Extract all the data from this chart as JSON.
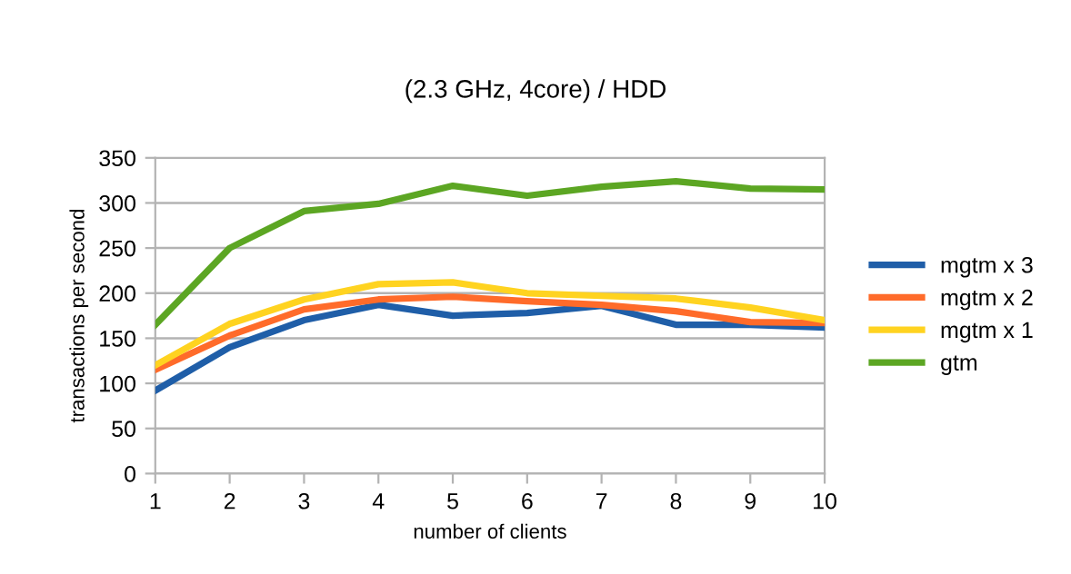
{
  "chart_data": {
    "type": "line",
    "subtitle": "(2.3 GHz, 4core) / HDD",
    "xlabel": "number of clients",
    "ylabel": "transactions per second",
    "x": [
      1,
      2,
      3,
      4,
      5,
      6,
      7,
      8,
      9,
      10
    ],
    "series": [
      {
        "name": "mgtm x 3",
        "color": "#1f5ea8",
        "values": [
          92,
          140,
          170,
          187,
          175,
          178,
          186,
          165,
          165,
          162
        ]
      },
      {
        "name": "mgtm x 2",
        "color": "#ff6b2a",
        "values": [
          115,
          153,
          182,
          193,
          196,
          191,
          187,
          180,
          168,
          167
        ]
      },
      {
        "name": "mgtm x 1",
        "color": "#ffd320",
        "values": [
          120,
          166,
          193,
          210,
          212,
          200,
          197,
          194,
          184,
          170
        ]
      },
      {
        "name": "gtm",
        "color": "#5ca623",
        "values": [
          165,
          250,
          291,
          299,
          319,
          308,
          318,
          324,
          316,
          315
        ]
      }
    ],
    "xlim": [
      1,
      10
    ],
    "xticks": [
      1,
      2,
      3,
      4,
      5,
      6,
      7,
      8,
      9,
      10
    ],
    "ylim": [
      0,
      350
    ],
    "yticks": [
      0,
      50,
      100,
      150,
      200,
      250,
      300,
      350
    ],
    "grid": "y",
    "legend": "right",
    "marker": "none",
    "line_style": "solid"
  }
}
